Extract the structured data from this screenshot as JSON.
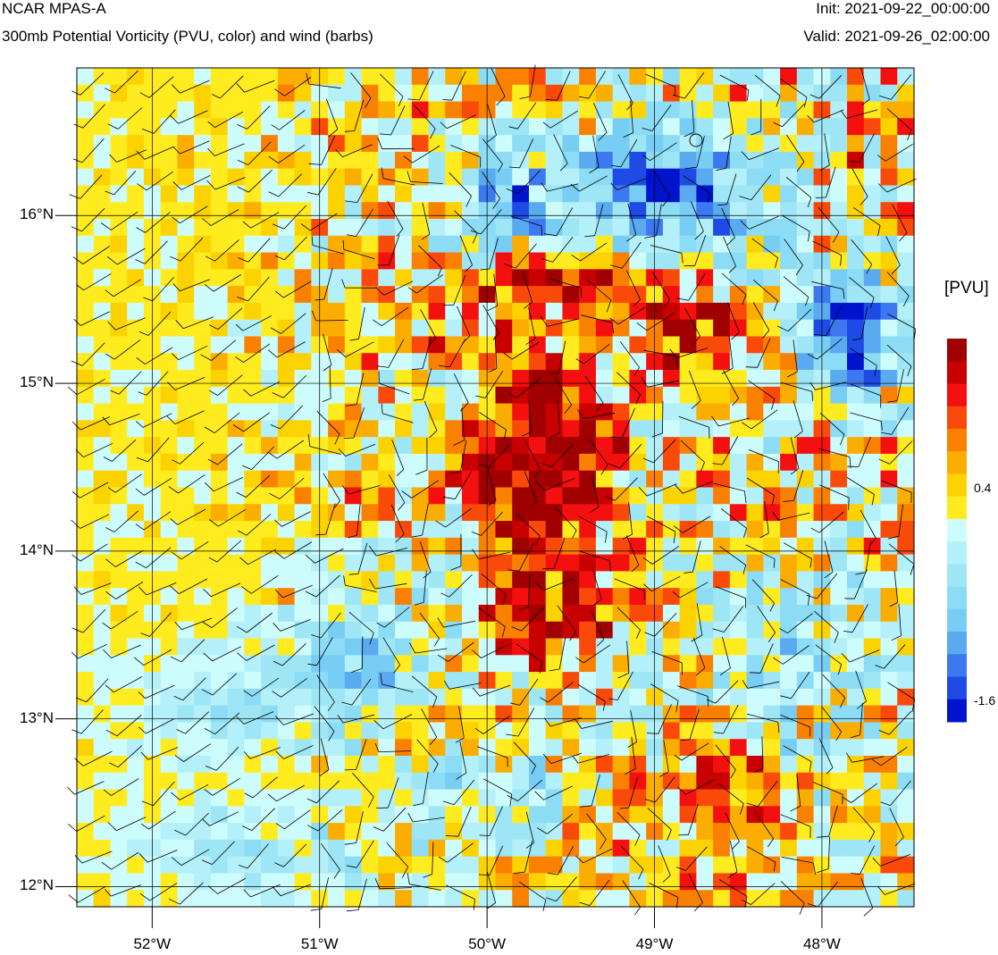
{
  "header": {
    "model": "NCAR MPAS-A",
    "field": "300mb Potential Vorticity (PVU, color) and wind (barbs)",
    "init": "Init: 2021-09-22_00:00:00",
    "valid": "Valid: 2021-09-26_02:00:00"
  },
  "map": {
    "lon_range": [
      -52.45,
      -47.45
    ],
    "lat_range": [
      11.88,
      16.88
    ],
    "lat_ticks": [
      {
        "value": 16,
        "label": "16°N"
      },
      {
        "value": 15,
        "label": "15°N"
      },
      {
        "value": 14,
        "label": "14°N"
      },
      {
        "value": 13,
        "label": "13°N"
      },
      {
        "value": 12,
        "label": "12°N"
      }
    ],
    "lon_ticks": [
      {
        "value": -52,
        "label": "52°W"
      },
      {
        "value": -51,
        "label": "51°W"
      },
      {
        "value": -50,
        "label": "50°W"
      },
      {
        "value": -49,
        "label": "49°W"
      },
      {
        "value": -48,
        "label": "48°W"
      }
    ],
    "pv_features": [
      {
        "kind": "max",
        "lon": -49.7,
        "lat": 14.5,
        "pvu": 1.2
      },
      {
        "kind": "max",
        "lon": -49.6,
        "lat": 15.65,
        "pvu": 1.0
      },
      {
        "kind": "max",
        "lon": -48.8,
        "lat": 15.3,
        "pvu": 0.9
      },
      {
        "kind": "min",
        "lon": -48.8,
        "lat": 16.1,
        "pvu": -1.6
      },
      {
        "kind": "min",
        "lon": -47.9,
        "lat": 15.3,
        "pvu": -1.6
      }
    ]
  },
  "colorbar": {
    "unit": "[PVU]",
    "label_high": "0.4",
    "label_low": "-1.6",
    "colors": [
      "#a00000",
      "#c80000",
      "#f51010",
      "#fa4a0a",
      "#fa8000",
      "#fbad00",
      "#fcd200",
      "#ffeb1e",
      "#cdfcfc",
      "#b4f0fa",
      "#9ee6f5",
      "#8cdcf5",
      "#78cdf5",
      "#5aaaf0",
      "#3c78f0",
      "#1e4be6",
      "#0014cd"
    ]
  }
}
